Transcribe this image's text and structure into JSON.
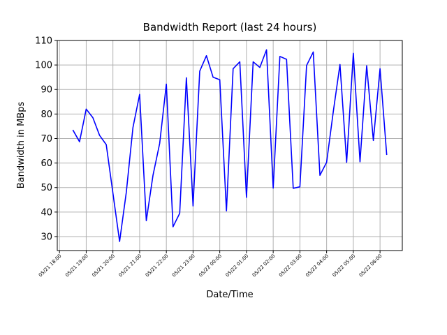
{
  "chart_data": {
    "type": "line",
    "title": "Bandwidth Report (last 24 hours)",
    "x_label": "Date/Time",
    "y_label": "Bandwidth in MBps",
    "x": [
      "05/21 18:30",
      "05/21 18:45",
      "05/21 19:00",
      "05/21 19:15",
      "05/21 19:30",
      "05/21 19:45",
      "05/21 20:00",
      "05/21 20:15",
      "05/21 20:30",
      "05/21 20:45",
      "05/21 21:00",
      "05/21 21:15",
      "05/21 21:30",
      "05/21 21:45",
      "05/21 22:00",
      "05/21 22:15",
      "05/21 22:30",
      "05/21 22:45",
      "05/21 23:00",
      "05/21 23:15",
      "05/21 23:30",
      "05/21 23:45",
      "05/22 00:00",
      "05/22 00:15",
      "05/22 00:30",
      "05/22 00:45",
      "05/22 01:00",
      "05/22 01:15",
      "05/22 01:30",
      "05/22 01:45",
      "05/22 02:00",
      "05/22 02:15",
      "05/22 02:30",
      "05/22 02:45",
      "05/22 03:00",
      "05/22 03:15",
      "05/22 03:30",
      "05/22 03:45",
      "05/22 04:00",
      "05/22 04:15",
      "05/22 04:30",
      "05/22 04:45",
      "05/22 05:00",
      "05/22 05:15",
      "05/22 05:30",
      "05/22 05:45",
      "05/22 06:00",
      "05/22 06:15"
    ],
    "series": [
      {
        "color": "#0000ff",
        "values": [
          73.5,
          68.7,
          82,
          78.5,
          71.3,
          67.5,
          47.7,
          28,
          48,
          74.5,
          88,
          36.5,
          55,
          68,
          92.2,
          34,
          39.5,
          94.8,
          42.5,
          97.5,
          103.8,
          95,
          94,
          40.5,
          98.5,
          101.3,
          46,
          101.3,
          99,
          106.2,
          49.8,
          103.5,
          102.3,
          49.7,
          50.3,
          99.8,
          105.3,
          55,
          60.3,
          81,
          100.2,
          60.3,
          104.8,
          60.5,
          99.7,
          69.2,
          98.5,
          63.3
        ]
      }
    ],
    "xlim": [
      "05/21 17:55",
      "05/22 06:50"
    ],
    "xticks": [
      "05/21 18:00",
      "05/21 19:00",
      "05/21 20:00",
      "05/21 21:00",
      "05/21 22:00",
      "05/21 23:00",
      "05/22 00:00",
      "05/22 01:00",
      "05/22 02:00",
      "05/22 03:00",
      "05/22 04:00",
      "05/22 05:00",
      "05/22 06:00"
    ],
    "ylim": [
      24.3,
      110
    ],
    "yticks": [
      30,
      40,
      50,
      60,
      70,
      80,
      90,
      100,
      110
    ],
    "grid": true
  }
}
